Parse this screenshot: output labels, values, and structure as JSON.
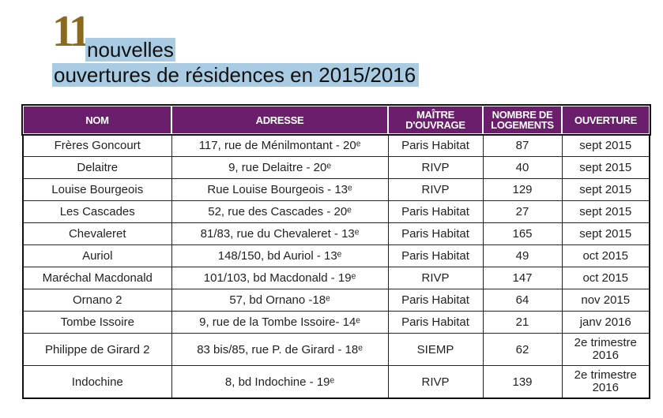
{
  "title": {
    "number": "11",
    "line1": "nouvelles",
    "line2": "ouvertures de résidences en 2015/2016"
  },
  "table": {
    "headers": [
      "NOM",
      "ADRESSE",
      "MAÎTRE D'OUVRAGE",
      "NOMBRE DE LOGEMENTS",
      "OUVERTURE"
    ],
    "rows": [
      [
        "Frères Goncourt",
        "117, rue de Ménilmontant - 20ᵉ",
        "Paris Habitat",
        "87",
        "sept 2015"
      ],
      [
        "Delaitre",
        "9, rue Delaitre - 20ᵉ",
        "RIVP",
        "40",
        "sept 2015"
      ],
      [
        "Louise Bourgeois",
        "Rue Louise Bourgeois - 13ᵉ",
        "RIVP",
        "129",
        "sept 2015"
      ],
      [
        "Les Cascades",
        "52, rue des Cascades - 20ᵉ",
        "Paris Habitat",
        "27",
        "sept 2015"
      ],
      [
        "Chevaleret",
        "81/83, rue du Chevaleret - 13ᵉ",
        "Paris Habitat",
        "165",
        "sept 2015"
      ],
      [
        "Auriol",
        "148/150, bd Auriol - 13ᵉ",
        "Paris Habitat",
        "49",
        "oct 2015"
      ],
      [
        "Maréchal Macdonald",
        "101/103, bd Macdonald - 19ᵉ",
        "RIVP",
        "147",
        "oct 2015"
      ],
      [
        "Ornano 2",
        "57, bd Ornano -18ᵉ",
        "Paris Habitat",
        "64",
        "nov 2015"
      ],
      [
        "Tombe Issoire",
        "9, rue de la Tombe Issoire- 14ᵉ",
        "Paris Habitat",
        "21",
        "janv 2016"
      ],
      [
        "Philippe de Girard 2",
        "83 bis/85, rue P. de Girard - 18ᵉ",
        "SIEMP",
        "62",
        "2e trimestre 2016"
      ],
      [
        "Indochine",
        "8, bd Indochine - 19ᵉ",
        "RIVP",
        "139",
        "2e trimestre 2016"
      ]
    ]
  }
}
